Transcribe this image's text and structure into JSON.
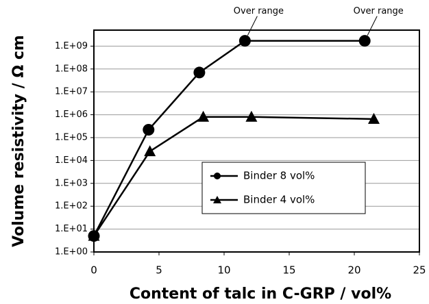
{
  "chart_data": {
    "type": "line",
    "xlabel": "Content of talc in C-GRP / vol%",
    "ylabel": "Volume resistivity / Ω cm",
    "xlim": [
      0,
      25
    ],
    "xticks": [
      0,
      5,
      10,
      15,
      20,
      25
    ],
    "ylim": [
      1,
      5000000000
    ],
    "ylog": true,
    "yticks": [
      {
        "value": 1,
        "label": "1.E+00"
      },
      {
        "value": 10,
        "label": "1.E+01"
      },
      {
        "value": 100,
        "label": "1.E+02"
      },
      {
        "value": 1000,
        "label": "1.E+03"
      },
      {
        "value": 10000,
        "label": "1.E+04"
      },
      {
        "value": 100000,
        "label": "1.E+05"
      },
      {
        "value": 1000000,
        "label": "1.E+06"
      },
      {
        "value": 10000000,
        "label": "1.E+07"
      },
      {
        "value": 100000000,
        "label": "1.E+08"
      },
      {
        "value": 1000000000,
        "label": "1.E+09"
      }
    ],
    "grid": true,
    "legend": "center-right",
    "series": [
      {
        "name": "Binder 8 vol%",
        "color": "#000000",
        "marker": "circle",
        "x": [
          0,
          4.2,
          8.1,
          11.6,
          20.8
        ],
        "values": [
          5,
          220000,
          70000000,
          1700000000,
          1700000000
        ]
      },
      {
        "name": "Binder 4 vol%",
        "color": "#000000",
        "marker": "triangle",
        "x": [
          0,
          4.3,
          8.4,
          12.1,
          21.5
        ],
        "values": [
          5,
          25000,
          800000,
          800000,
          650000
        ]
      }
    ],
    "annotations": [
      {
        "text": "Over range",
        "x": 11.6,
        "y": 1700000000
      },
      {
        "text": "Over range",
        "x": 20.8,
        "y": 1700000000
      }
    ]
  }
}
